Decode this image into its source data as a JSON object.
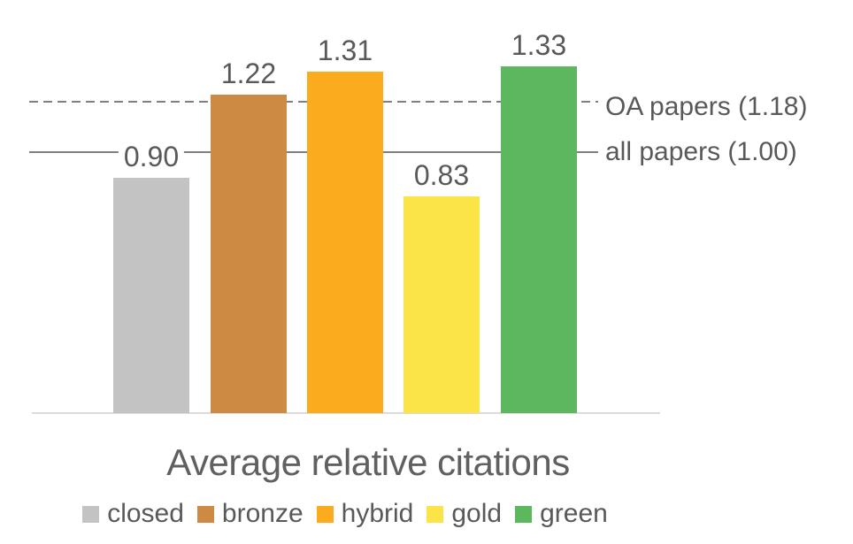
{
  "chart_data": {
    "type": "bar",
    "title": "Average relative citations",
    "categories": [
      "closed",
      "bronze",
      "hybrid",
      "gold",
      "green"
    ],
    "values": [
      0.9,
      1.22,
      1.31,
      0.83,
      1.33
    ],
    "value_labels": [
      "0.90",
      "1.22",
      "1.31",
      "0.83",
      "1.33"
    ],
    "series_colors": [
      "#C3C3C3",
      "#CD8A43",
      "#FAAC1E",
      "#FBE448",
      "#5CB75F"
    ],
    "reference_lines": [
      {
        "label": "OA papers (1.18)",
        "value": 1.18,
        "style": "dashed"
      },
      {
        "label": "all papers (1.00)",
        "value": 1.0,
        "style": "solid"
      }
    ],
    "ylim": [
      0,
      1.4
    ],
    "xlabel": "",
    "ylabel": "",
    "grid": false,
    "legend_position": "bottom",
    "legend": [
      {
        "label": "closed",
        "color": "#C3C3C3"
      },
      {
        "label": "bronze",
        "color": "#CD8A43"
      },
      {
        "label": "hybrid",
        "color": "#FAAC1E"
      },
      {
        "label": "gold",
        "color": "#FBE448"
      },
      {
        "label": "green",
        "color": "#5CB75F"
      }
    ]
  },
  "colors": {
    "text": "#595959",
    "reference_line": "#7F7F7F",
    "axis_line": "#DBDBDB",
    "background": "#FFFFFF"
  }
}
